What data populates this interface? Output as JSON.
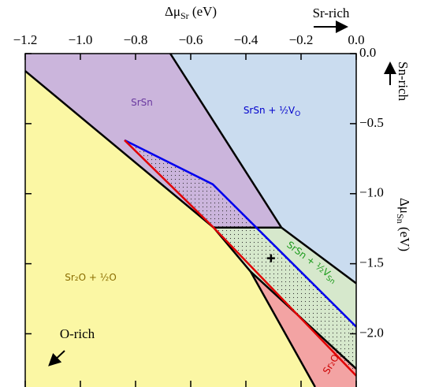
{
  "chart_data": {
    "type": "phase-diagram",
    "x_label": {
      "text": "Δμ",
      "sub": "Sr",
      "unit": "(eV)"
    },
    "y_label": {
      "text": "Δμ",
      "sub": "Sn",
      "unit": "(eV)"
    },
    "annotations": {
      "sr_rich": "Sr-rich",
      "sn_rich": "Sn-rich",
      "o_rich": "O-rich"
    },
    "xlim": [
      -1.2,
      0
    ],
    "ylim": [
      -2.38,
      0
    ],
    "xticks": [
      {
        "value": -1.2,
        "label": "−1.2"
      },
      {
        "value": -1.0,
        "label": "−1.0"
      },
      {
        "value": -0.8,
        "label": "−0.8"
      },
      {
        "value": -0.6,
        "label": "−0.6"
      },
      {
        "value": -0.4,
        "label": "−0.4"
      },
      {
        "value": -0.2,
        "label": "−0.2"
      },
      {
        "value": 0,
        "label": "0.0"
      }
    ],
    "yticks": [
      {
        "value": 0,
        "label": "0.0"
      },
      {
        "value": -0.5,
        "label": "−0.5"
      },
      {
        "value": -1.0,
        "label": "−1.0"
      },
      {
        "value": -1.5,
        "label": "−1.5"
      },
      {
        "value": -2.0,
        "label": "−2.0"
      }
    ],
    "regions": [
      {
        "name": {
          "text": "Sr₂O + ½O"
        },
        "color": "#fbf7a4",
        "x": [
          -1.2,
          -0.517,
          -0.383,
          -0.149,
          -1.2
        ],
        "y": [
          -0.124,
          -1.242,
          -1.556,
          -2.38,
          -2.38
        ]
      },
      {
        "name": {
          "text": "SrSn"
        },
        "color": "#cbb5dc",
        "x": [
          -1.2,
          -0.674,
          -0.271,
          -0.517,
          -1.2
        ],
        "y": [
          0,
          0,
          -1.242,
          -1.242,
          -0.124
        ]
      },
      {
        "name": {
          "text": "SrSn + ½V",
          "sub": "O"
        },
        "color": "#cadcef",
        "x": [
          -0.674,
          0,
          0,
          -0.271
        ],
        "y": [
          0,
          0,
          -1.64,
          -1.242
        ]
      },
      {
        "name": {
          "text": "SrSn + ½V",
          "sub": "Sn"
        },
        "color": "#d6e8cc",
        "x": [
          -0.517,
          -0.271,
          0,
          0,
          -0.383
        ],
        "y": [
          -1.242,
          -1.242,
          -1.64,
          -2.25,
          -1.556
        ]
      },
      {
        "name": {
          "text": "Sr₂O"
        },
        "color": "#f3a3a3",
        "x": [
          -0.383,
          0,
          0,
          -0.149
        ],
        "y": [
          -1.556,
          -2.25,
          -2.38,
          -2.38
        ]
      }
    ],
    "dotted": {
      "x": [
        -0.84,
        -0.52,
        0,
        0,
        -0.517
      ],
      "y": [
        -0.618,
        -0.933,
        -1.95,
        -2.3,
        -1.242
      ]
    },
    "lines": [
      {
        "color": "#000000",
        "x": [
          -1.2,
          -0.517,
          -0.383,
          -0.149
        ],
        "y": [
          -0.124,
          -1.242,
          -1.556,
          -2.38
        ]
      },
      {
        "color": "#000000",
        "x": [
          -0.674,
          -0.271,
          0
        ],
        "y": [
          0,
          -1.242,
          -1.64
        ]
      },
      {
        "color": "#000000",
        "x": [
          -0.517,
          -0.271
        ],
        "y": [
          -1.242,
          -1.242
        ]
      },
      {
        "color": "#000000",
        "x": [
          -0.383,
          0
        ],
        "y": [
          -1.556,
          -2.25
        ]
      },
      {
        "color": "#0000ee",
        "x": [
          -0.84,
          -0.52,
          0
        ],
        "y": [
          -0.618,
          -0.933,
          -1.95
        ]
      },
      {
        "color": "#e00000",
        "x": [
          -0.84,
          -0.517,
          0
        ],
        "y": [
          -0.618,
          -1.242,
          -2.3
        ]
      }
    ],
    "point": {
      "x": -0.309,
      "y": -1.461
    }
  }
}
